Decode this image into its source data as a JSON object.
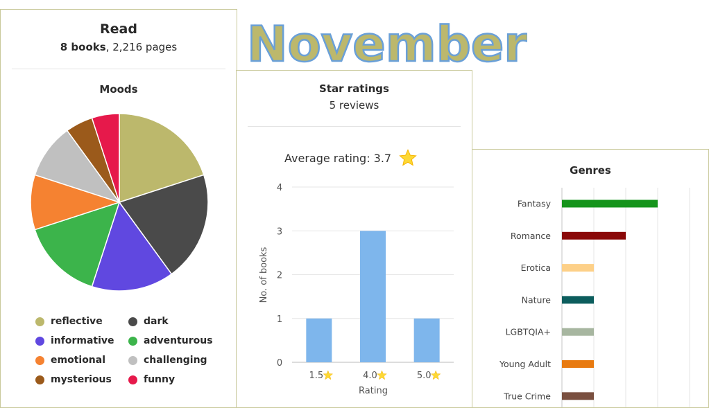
{
  "month_title": "November",
  "read": {
    "title": "Read",
    "books": "8 books",
    "pages": ", 2,216 pages"
  },
  "moods": {
    "title": "Moods",
    "legend": [
      {
        "label": "reflective",
        "color": "#bcb86c"
      },
      {
        "label": "dark",
        "color": "#4a4a4a"
      },
      {
        "label": "informative",
        "color": "#6048e0"
      },
      {
        "label": "adventurous",
        "color": "#3cb44b"
      },
      {
        "label": "emotional",
        "color": "#f58231"
      },
      {
        "label": "challenging",
        "color": "#c0c0c0"
      },
      {
        "label": "mysterious",
        "color": "#9b5a1b"
      },
      {
        "label": "funny",
        "color": "#e6194b"
      }
    ]
  },
  "ratings": {
    "title": "Star ratings",
    "subtitle": "5 reviews",
    "average": "Average rating: 3.7"
  },
  "genres": {
    "title": "Genres"
  },
  "chart_data": [
    {
      "type": "pie",
      "title": "Moods",
      "categories": [
        "reflective",
        "dark",
        "informative",
        "adventurous",
        "emotional",
        "challenging",
        "mysterious",
        "funny"
      ],
      "values": [
        20,
        20,
        15,
        15,
        10,
        10,
        5,
        5
      ],
      "colors": [
        "#bcb86c",
        "#4a4a4a",
        "#6048e0",
        "#3cb44b",
        "#f58231",
        "#c0c0c0",
        "#9b5a1b",
        "#e6194b"
      ]
    },
    {
      "type": "bar",
      "title": "Star ratings",
      "categories": [
        "1.5",
        "4.0",
        "5.0"
      ],
      "values": [
        1,
        3,
        1
      ],
      "xlabel": "Rating",
      "ylabel": "No. of books",
      "ylim": [
        0,
        4
      ],
      "yticks": [
        "0",
        "1",
        "2",
        "3",
        "4"
      ],
      "color": "#7eb6ec"
    },
    {
      "type": "bar",
      "orientation": "horizontal",
      "title": "Genres",
      "categories": [
        "Fantasy",
        "Romance",
        "Erotica",
        "Nature",
        "LGBTQIA+",
        "Young Adult",
        "True Crime"
      ],
      "values": [
        3,
        2,
        1,
        1,
        1,
        1,
        1
      ],
      "colors": [
        "#15941b",
        "#8a0808",
        "#fdd088",
        "#0c5d5d",
        "#a7b6a0",
        "#e87a10",
        "#7a5040"
      ],
      "xlim": [
        0,
        4
      ]
    }
  ]
}
